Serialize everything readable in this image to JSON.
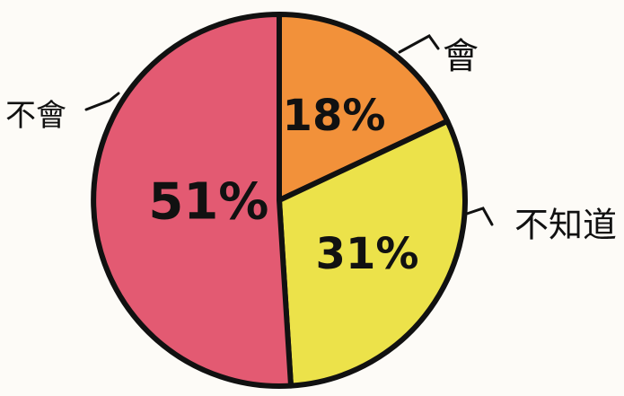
{
  "chart_data": {
    "type": "pie",
    "title": "",
    "categories": [
      "會",
      "不知道",
      "不會"
    ],
    "values": [
      18,
      31,
      51
    ],
    "data_labels": [
      "18%",
      "31%",
      "51%"
    ],
    "colors": [
      "#f2913a",
      "#ece24a",
      "#e35a72"
    ],
    "legend": "none"
  }
}
